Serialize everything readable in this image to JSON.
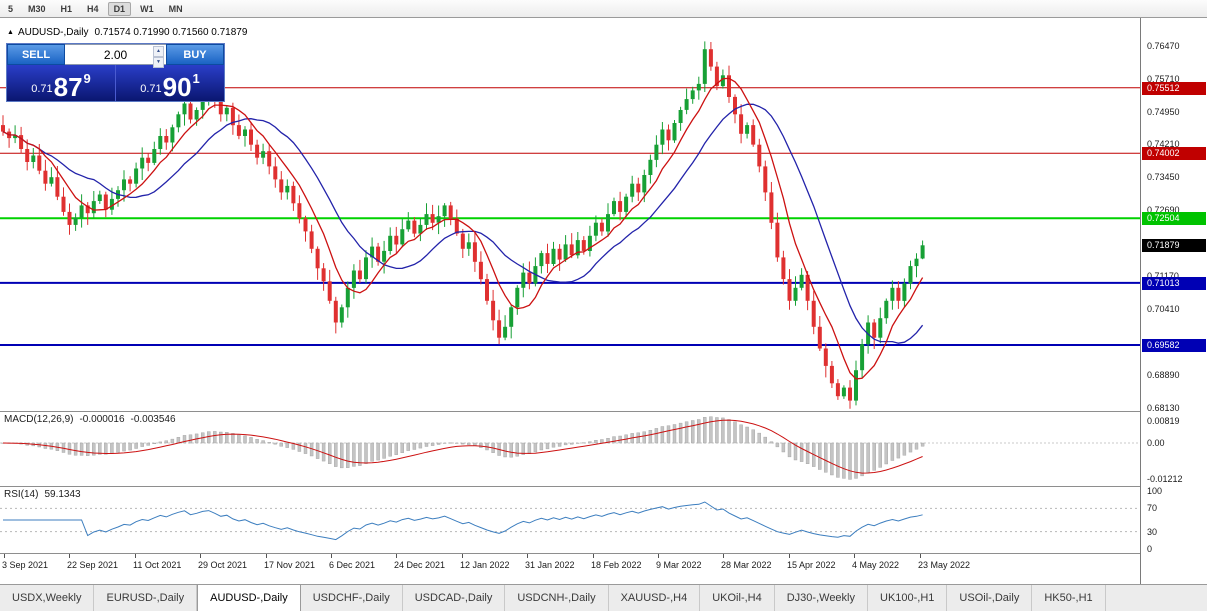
{
  "toolbar": {
    "timeframes": [
      "5",
      "M30",
      "H1",
      "H4",
      "D1",
      "W1",
      "MN"
    ],
    "active_timeframe": "D1"
  },
  "icons": {
    "marker": "▲",
    "spinner_up": "▲",
    "spinner_down": "▼"
  },
  "chart": {
    "title": "AUDUSD-,Daily",
    "ohlc": "0.71574 0.71990 0.71560 0.71879"
  },
  "trade_panel": {
    "sell_label": "SELL",
    "buy_label": "BUY",
    "lot_value": "2.00",
    "sell_price": {
      "prefix": "0.71",
      "big": "87",
      "pip": "9"
    },
    "buy_price": {
      "prefix": "0.71",
      "big": "90",
      "pip": "1"
    }
  },
  "price_axis": {
    "ticks": [
      "0.76470",
      "0.75710",
      "0.74950",
      "0.74210",
      "0.73450",
      "0.72690",
      "0.71170",
      "0.70410",
      "0.68890",
      "0.68130"
    ],
    "level_labels": [
      {
        "label": "0.75512",
        "color": "#c00000"
      },
      {
        "label": "0.74002",
        "color": "#c00000"
      },
      {
        "label": "0.72504",
        "color": "#00c300"
      },
      {
        "label": "0.71013",
        "color": "#0000b4"
      },
      {
        "label": "0.69582",
        "color": "#0000b4"
      }
    ],
    "current_price": {
      "label": "0.71879",
      "color": "#000000"
    }
  },
  "indicators": {
    "macd": {
      "label": "MACD(12,26,9)",
      "value_main": "-0.000016",
      "value_signal": "-0.003546",
      "axis_top": "0.00819",
      "axis_zero": "0.00",
      "axis_bottom": "-0.01212"
    },
    "rsi": {
      "label": "RSI(14)",
      "value": "59.1343",
      "axis": [
        "100",
        "70",
        "30",
        "0"
      ]
    }
  },
  "date_axis": [
    "3 Sep 2021",
    "22 Sep 2021",
    "11 Oct 2021",
    "29 Oct 2021",
    "17 Nov 2021",
    "6 Dec 2021",
    "24 Dec 2021",
    "12 Jan 2022",
    "31 Jan 2022",
    "18 Feb 2022",
    "9 Mar 2022",
    "28 Mar 2022",
    "15 Apr 2022",
    "4 May 2022",
    "23 May 2022"
  ],
  "tabs": {
    "active": "AUDUSD-,Daily",
    "items": [
      "USDX,Weekly",
      "EURUSD-,Daily",
      "AUDUSD-,Daily",
      "USDCHF-,Daily",
      "USDCAD-,Daily",
      "USDCNH-,Daily",
      "XAUUSD-,H4",
      "UKOil-,H4",
      "DJ30-,Weekly",
      "UK100-,H1",
      "USOil-,Daily",
      "HK50-,H1"
    ]
  },
  "chart_data": {
    "type": "candlestick",
    "symbol": "AUDUSD",
    "timeframe": "Daily",
    "title": "AUDUSD-,Daily",
    "y_range": [
      0.6806,
      0.7712
    ],
    "x_tick_labels": [
      "3 Sep 2021",
      "22 Sep 2021",
      "11 Oct 2021",
      "29 Oct 2021",
      "17 Nov 2021",
      "6 Dec 2021",
      "24 Dec 2021",
      "12 Jan 2022",
      "31 Jan 2022",
      "18 Feb 2022",
      "9 Mar 2022",
      "28 Mar 2022",
      "15 Apr 2022",
      "4 May 2022",
      "23 May 2022"
    ],
    "closes": [
      0.745,
      0.7435,
      0.7442,
      0.741,
      0.738,
      0.7395,
      0.736,
      0.733,
      0.7345,
      0.73,
      0.7265,
      0.7235,
      0.7252,
      0.728,
      0.7262,
      0.729,
      0.7305,
      0.727,
      0.7295,
      0.7315,
      0.734,
      0.733,
      0.7365,
      0.739,
      0.7378,
      0.741,
      0.744,
      0.7425,
      0.746,
      0.749,
      0.7515,
      0.7478,
      0.75,
      0.753,
      0.7545,
      0.752,
      0.749,
      0.7505,
      0.7465,
      0.744,
      0.7455,
      0.742,
      0.739,
      0.7405,
      0.737,
      0.734,
      0.731,
      0.7325,
      0.7285,
      0.725,
      0.722,
      0.718,
      0.7135,
      0.7105,
      0.706,
      0.701,
      0.7045,
      0.709,
      0.713,
      0.711,
      0.716,
      0.7185,
      0.715,
      0.7175,
      0.721,
      0.719,
      0.7225,
      0.7245,
      0.7215,
      0.7235,
      0.726,
      0.724,
      0.7255,
      0.728,
      0.725,
      0.7215,
      0.718,
      0.7195,
      0.715,
      0.711,
      0.706,
      0.7015,
      0.6975,
      0.7,
      0.7045,
      0.709,
      0.7125,
      0.71,
      0.714,
      0.717,
      0.7145,
      0.718,
      0.7155,
      0.719,
      0.7165,
      0.72,
      0.7175,
      0.721,
      0.724,
      0.722,
      0.726,
      0.729,
      0.7265,
      0.73,
      0.733,
      0.731,
      0.735,
      0.7385,
      0.742,
      0.7455,
      0.743,
      0.747,
      0.75,
      0.7525,
      0.7545,
      0.756,
      0.764,
      0.76,
      0.7555,
      0.758,
      0.753,
      0.749,
      0.7445,
      0.7465,
      0.742,
      0.737,
      0.731,
      0.724,
      0.716,
      0.711,
      0.706,
      0.709,
      0.712,
      0.706,
      0.7,
      0.695,
      0.691,
      0.687,
      0.684,
      0.686,
      0.683,
      0.69,
      0.696,
      0.701,
      0.6975,
      0.702,
      0.706,
      0.709,
      0.706,
      0.71,
      0.714,
      0.7157,
      0.71879
    ],
    "last_candle": {
      "open": 0.71574,
      "high": 0.7199,
      "low": 0.7156,
      "close": 0.71879
    },
    "levels": [
      {
        "price": 0.75512,
        "color": "#c00000",
        "width": 1
      },
      {
        "price": 0.74002,
        "color": "#c00000",
        "width": 1
      },
      {
        "price": 0.72504,
        "color": "#00d200",
        "width": 2
      },
      {
        "price": 0.71013,
        "color": "#0000b4",
        "width": 2
      },
      {
        "price": 0.69582,
        "color": "#0000b4",
        "width": 2
      }
    ],
    "overlays": [
      {
        "name": "ma-fast",
        "period": 7,
        "color": "#cc1111"
      },
      {
        "name": "ma-slow",
        "period": 16,
        "color": "#2323aa"
      }
    ],
    "macd": {
      "fast": 12,
      "slow": 26,
      "signal": 9,
      "hist_color": "#c4c4c4",
      "signal_color": "#cc1111",
      "axis_labels": [
        "0.00819",
        "0.00",
        "-0.01212"
      ]
    },
    "rsi": {
      "period": 14,
      "levels": [
        70,
        30
      ],
      "color": "#3c7ebf",
      "axis_labels": [
        100,
        70,
        30,
        0
      ]
    },
    "colors": {
      "up": "#17a035",
      "down": "#df3030"
    },
    "legend_position": "none",
    "grid": "off"
  }
}
